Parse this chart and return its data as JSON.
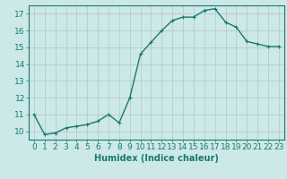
{
  "x": [
    0,
    1,
    2,
    3,
    4,
    5,
    6,
    7,
    8,
    9,
    10,
    11,
    12,
    13,
    14,
    15,
    16,
    17,
    18,
    19,
    20,
    21,
    22,
    23
  ],
  "y": [
    11.0,
    9.8,
    9.9,
    10.2,
    10.3,
    10.4,
    10.6,
    11.0,
    10.5,
    12.0,
    14.6,
    15.3,
    16.0,
    16.6,
    16.8,
    16.8,
    17.2,
    17.3,
    16.5,
    16.2,
    15.35,
    15.2,
    15.05,
    15.05
  ],
  "line_color": "#1a7a6a",
  "marker": "+",
  "marker_size": 3,
  "bg_color": "#cce8e8",
  "grid_color_major": "#b0c8c8",
  "grid_color_minor": "#d4e8e4",
  "xlabel": "Humidex (Indice chaleur)",
  "xlim": [
    -0.5,
    23.5
  ],
  "ylim": [
    9.5,
    17.5
  ],
  "yticks": [
    10,
    11,
    12,
    13,
    14,
    15,
    16,
    17
  ],
  "xticks": [
    0,
    1,
    2,
    3,
    4,
    5,
    6,
    7,
    8,
    9,
    10,
    11,
    12,
    13,
    14,
    15,
    16,
    17,
    18,
    19,
    20,
    21,
    22,
    23
  ],
  "tick_color": "#1a7a6a",
  "axis_color": "#1a7a6a",
  "font_color": "#1a7a6a",
  "xlabel_fontsize": 7,
  "tick_fontsize": 6.5,
  "linewidth": 1.0
}
